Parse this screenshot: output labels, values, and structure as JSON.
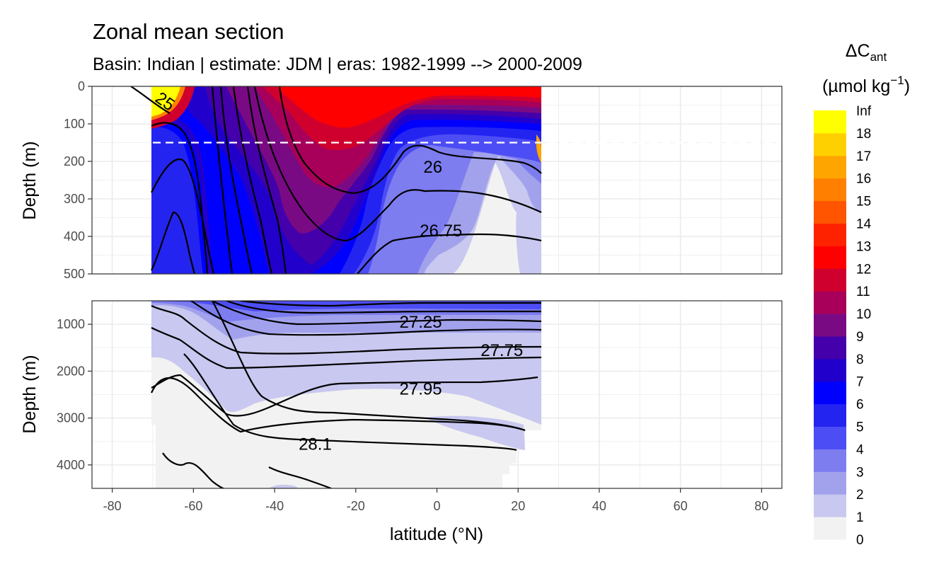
{
  "title": "Zonal mean section",
  "subtitle": "Basin: Indian | estimate: JDM  | eras: 1982-1999 --> 2000-2009",
  "xlabel": "latitude (°N)",
  "legend": {
    "title_main": "ΔC",
    "title_sub": "ant",
    "units_pre": "(µmol kg",
    "units_sup": "−1",
    "units_post": ")"
  },
  "chart_data": {
    "type": "heatmap",
    "x_range": [
      -85,
      85
    ],
    "x_ticks": [
      -80,
      -60,
      -40,
      -20,
      0,
      20,
      40,
      60,
      80
    ],
    "data_lat_range": [
      -70,
      25
    ],
    "surface_mixed_layer_depth": 150,
    "panels": [
      {
        "id": "upper",
        "ylabel": "Depth (m)",
        "ylim": [
          500,
          0
        ],
        "y_ticks": [
          0,
          100,
          200,
          300,
          400,
          500
        ]
      },
      {
        "id": "lower",
        "ylabel": "Depth (m)",
        "ylim": [
          4500,
          500
        ],
        "y_ticks": [
          1000,
          2000,
          3000,
          4000
        ]
      }
    ],
    "color_scale": {
      "breaks": [
        "0",
        "1",
        "2",
        "3",
        "4",
        "5",
        "6",
        "7",
        "8",
        "9",
        "10",
        "11",
        "12",
        "13",
        "14",
        "15",
        "16",
        "17",
        "18",
        "Inf"
      ],
      "colors": [
        "#f2f2f2",
        "#c8c8f0",
        "#a2a2ec",
        "#7d7df0",
        "#4d4df5",
        "#2424f0",
        "#0000ff",
        "#2200cc",
        "#4400aa",
        "#7a0a84",
        "#a8005a",
        "#d0002e",
        "#ff0000",
        "#ff2200",
        "#ff5500",
        "#ff7f00",
        "#ffa500",
        "#ffd000",
        "#ffff00"
      ]
    },
    "isopycnal_labels": [
      {
        "label": "26",
        "lat": -1,
        "depth": 215
      },
      {
        "label": "26.75",
        "lat": 1,
        "depth": 385
      },
      {
        "label": "27.25",
        "lat": -4,
        "depth": 950
      },
      {
        "label": "27.75",
        "lat": 16,
        "depth": 1560
      },
      {
        "label": "27.95",
        "lat": -4,
        "depth": 2380
      },
      {
        "label": "28.1",
        "lat": -30,
        "depth": 3560
      },
      {
        "label": "25",
        "lat": -67,
        "depth": 40
      }
    ]
  }
}
